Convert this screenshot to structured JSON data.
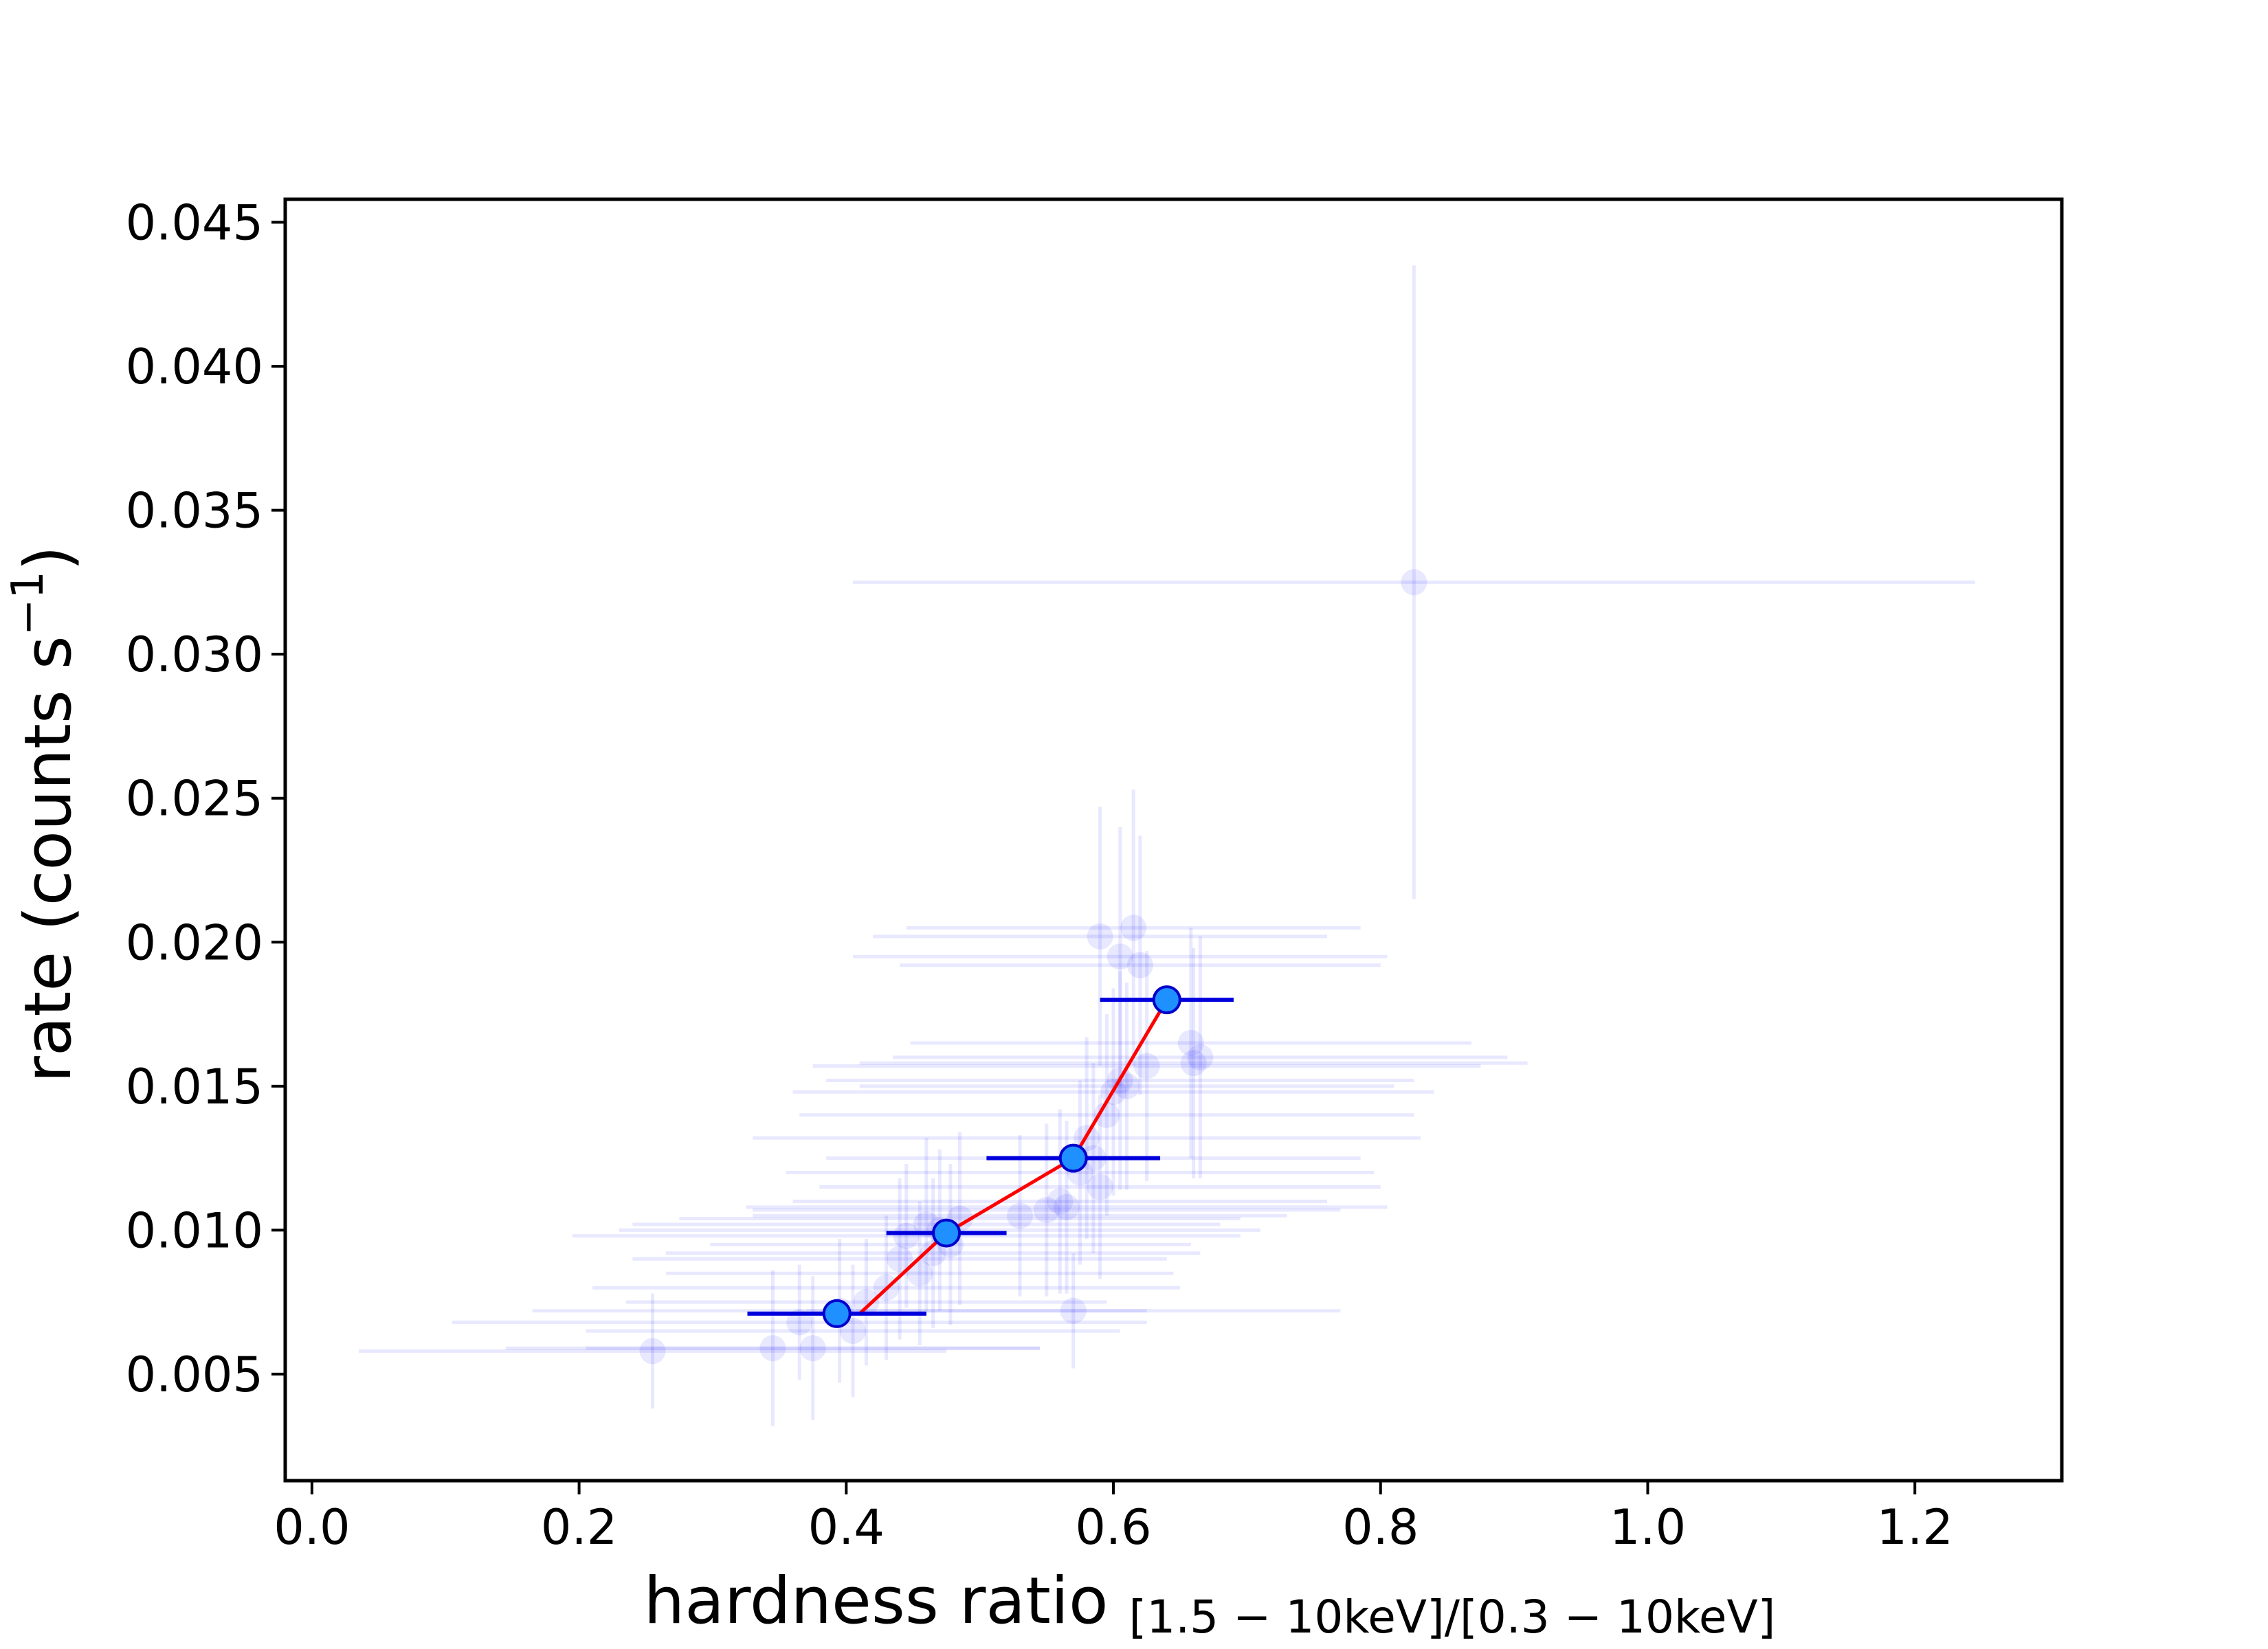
{
  "chart_data": {
    "type": "scatter",
    "title": "",
    "xlabel": "hardness ratio",
    "xlabel_subscript": "[1.5 − 10keV]/[0.3 − 10keV]",
    "ylabel": "rate (counts s",
    "ylabel_superscript": "−1",
    "ylabel_close": ")",
    "xlim": [
      -0.02,
      1.31
    ],
    "ylim": [
      0.0013,
      0.0458
    ],
    "xticks": [
      0.0,
      0.2,
      0.4,
      0.6,
      0.8,
      1.0,
      1.2
    ],
    "xtick_labels": [
      "0.0",
      "0.2",
      "0.4",
      "0.6",
      "0.8",
      "1.0",
      "1.2"
    ],
    "yticks": [
      0.005,
      0.01,
      0.015,
      0.02,
      0.025,
      0.03,
      0.035,
      0.04,
      0.045
    ],
    "ytick_labels": [
      "0.005",
      "0.010",
      "0.015",
      "0.020",
      "0.025",
      "0.030",
      "0.035",
      "0.040",
      "0.045"
    ],
    "grid": false,
    "legend": "none",
    "colors": {
      "faint": "#0000ff",
      "binned_marker": "#1e90ff",
      "binned_edge": "#0000cc",
      "binned_errorbar": "#0000dd",
      "trend_line": "#ff0000"
    },
    "series": [
      {
        "role": "individual-observations",
        "opacity": 0.09,
        "points": [
          {
            "x": 0.825,
            "y": 0.0325,
            "xerr": 0.42,
            "yerr": 0.011
          },
          {
            "x": 0.255,
            "y": 0.0058,
            "xerr": 0.22,
            "yerr": 0.002
          },
          {
            "x": 0.345,
            "y": 0.0059,
            "xerr": 0.2,
            "yerr": 0.0027
          },
          {
            "x": 0.375,
            "y": 0.0059,
            "xerr": 0.17,
            "yerr": 0.0025
          },
          {
            "x": 0.365,
            "y": 0.0068,
            "xerr": 0.26,
            "yerr": 0.002
          },
          {
            "x": 0.395,
            "y": 0.0072,
            "xerr": 0.23,
            "yerr": 0.0025
          },
          {
            "x": 0.405,
            "y": 0.0065,
            "xerr": 0.2,
            "yerr": 0.0023
          },
          {
            "x": 0.415,
            "y": 0.0075,
            "xerr": 0.18,
            "yerr": 0.0022
          },
          {
            "x": 0.43,
            "y": 0.008,
            "xerr": 0.22,
            "yerr": 0.0025
          },
          {
            "x": 0.44,
            "y": 0.009,
            "xerr": 0.2,
            "yerr": 0.0028
          },
          {
            "x": 0.445,
            "y": 0.0098,
            "xerr": 0.25,
            "yerr": 0.0025
          },
          {
            "x": 0.455,
            "y": 0.0085,
            "xerr": 0.19,
            "yerr": 0.0025
          },
          {
            "x": 0.46,
            "y": 0.0102,
            "xerr": 0.22,
            "yerr": 0.003
          },
          {
            "x": 0.465,
            "y": 0.0092,
            "xerr": 0.2,
            "yerr": 0.0026
          },
          {
            "x": 0.47,
            "y": 0.01,
            "xerr": 0.24,
            "yerr": 0.0028
          },
          {
            "x": 0.478,
            "y": 0.0095,
            "xerr": 0.18,
            "yerr": 0.0028
          },
          {
            "x": 0.485,
            "y": 0.0104,
            "xerr": 0.21,
            "yerr": 0.003
          },
          {
            "x": 0.53,
            "y": 0.0105,
            "xerr": 0.2,
            "yerr": 0.0028
          },
          {
            "x": 0.55,
            "y": 0.0107,
            "xerr": 0.22,
            "yerr": 0.003
          },
          {
            "x": 0.56,
            "y": 0.011,
            "xerr": 0.2,
            "yerr": 0.0032
          },
          {
            "x": 0.565,
            "y": 0.0108,
            "xerr": 0.24,
            "yerr": 0.003
          },
          {
            "x": 0.575,
            "y": 0.012,
            "xerr": 0.22,
            "yerr": 0.0032
          },
          {
            "x": 0.58,
            "y": 0.0132,
            "xerr": 0.25,
            "yerr": 0.0035
          },
          {
            "x": 0.585,
            "y": 0.0125,
            "xerr": 0.2,
            "yerr": 0.0033
          },
          {
            "x": 0.59,
            "y": 0.0115,
            "xerr": 0.21,
            "yerr": 0.0032
          },
          {
            "x": 0.595,
            "y": 0.014,
            "xerr": 0.23,
            "yerr": 0.0035
          },
          {
            "x": 0.6,
            "y": 0.0148,
            "xerr": 0.24,
            "yerr": 0.0036
          },
          {
            "x": 0.605,
            "y": 0.0152,
            "xerr": 0.22,
            "yerr": 0.0038
          },
          {
            "x": 0.61,
            "y": 0.015,
            "xerr": 0.2,
            "yerr": 0.0036
          },
          {
            "x": 0.625,
            "y": 0.0157,
            "xerr": 0.25,
            "yerr": 0.004
          },
          {
            "x": 0.59,
            "y": 0.0202,
            "xerr": 0.17,
            "yerr": 0.0045
          },
          {
            "x": 0.605,
            "y": 0.0195,
            "xerr": 0.2,
            "yerr": 0.0045
          },
          {
            "x": 0.615,
            "y": 0.0205,
            "xerr": 0.17,
            "yerr": 0.0048
          },
          {
            "x": 0.62,
            "y": 0.0192,
            "xerr": 0.18,
            "yerr": 0.0045
          },
          {
            "x": 0.658,
            "y": 0.0165,
            "xerr": 0.21,
            "yerr": 0.004
          },
          {
            "x": 0.66,
            "y": 0.0158,
            "xerr": 0.25,
            "yerr": 0.004
          },
          {
            "x": 0.665,
            "y": 0.016,
            "xerr": 0.23,
            "yerr": 0.0042
          },
          {
            "x": 0.57,
            "y": 0.0072,
            "xerr": 0.2,
            "yerr": 0.002
          }
        ]
      },
      {
        "role": "binned-averages",
        "points": [
          {
            "x": 0.393,
            "y": 0.0071,
            "xerr": 0.067,
            "yerr": 0
          },
          {
            "x": 0.475,
            "y": 0.0099,
            "xerr": 0.045,
            "yerr": 0
          },
          {
            "x": 0.57,
            "y": 0.0125,
            "xerr": 0.065,
            "yerr": 0
          },
          {
            "x": 0.64,
            "y": 0.018,
            "xerr": 0.05,
            "yerr": 0
          }
        ]
      }
    ],
    "trend_line": {
      "x": [
        0.41,
        0.475,
        0.57,
        0.64
      ],
      "y": [
        0.0071,
        0.0099,
        0.0125,
        0.018
      ]
    }
  }
}
